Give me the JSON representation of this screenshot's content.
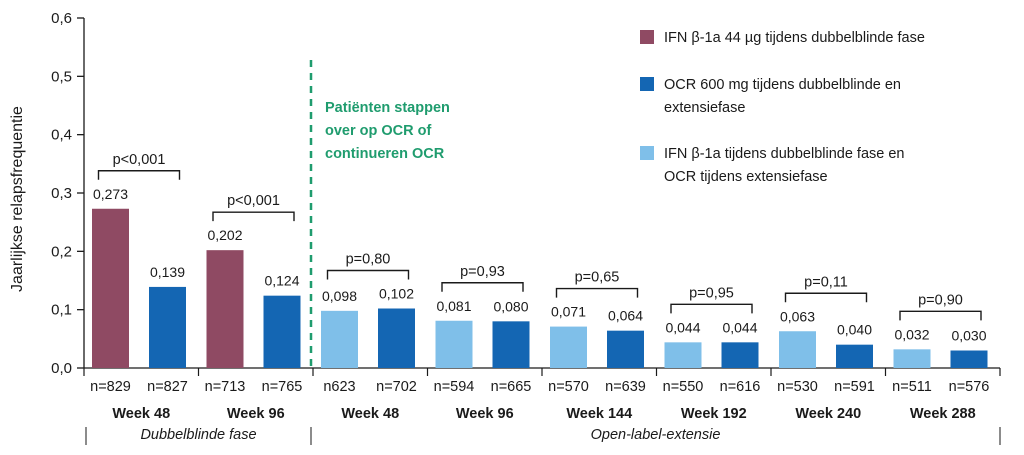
{
  "chart_data": {
    "type": "bar",
    "ylabel": "Jaarlijkse relapsfrequentie",
    "ylim": [
      0,
      0.6
    ],
    "yticks": [
      "0,0",
      "0,1",
      "0,2",
      "0,3",
      "0,4",
      "0,5",
      "0,6"
    ],
    "grid": false,
    "legend_position": "top-right",
    "colors": {
      "ifn": "#8f4a63",
      "ocr": "#1466b3",
      "ifn_ocr": "#7fbfe9",
      "divider": "#1f9c6e"
    },
    "legend": [
      {
        "series": "ifn",
        "lines": [
          "IFN β-1a 44 µg tijdens dubbelblinde fase"
        ]
      },
      {
        "series": "ocr",
        "lines": [
          "OCR 600 mg tijdens dubbelblinde en",
          "extensiefase"
        ]
      },
      {
        "series": "ifn_ocr",
        "lines": [
          "IFN β-1a tijdens dubbelblinde fase en",
          "OCR tijdens extensiefase"
        ]
      }
    ],
    "switch_note": [
      "Patiënten stappen",
      "over op OCR of",
      "continueren OCR"
    ],
    "groups": [
      {
        "week": "Week 48",
        "p": "p<0,001",
        "bars": [
          {
            "series": "ifn",
            "value": 0.273,
            "label": "0,273",
            "n": "n=829"
          },
          {
            "series": "ocr",
            "value": 0.139,
            "label": "0,139",
            "n": "n=827"
          }
        ]
      },
      {
        "week": "Week 96",
        "p": "p<0,001",
        "bars": [
          {
            "series": "ifn",
            "value": 0.202,
            "label": "0,202",
            "n": "n=713"
          },
          {
            "series": "ocr",
            "value": 0.124,
            "label": "0,124",
            "n": "n=765"
          }
        ]
      },
      {
        "week": "Week 48",
        "p": "p=0,80",
        "bars": [
          {
            "series": "ifn_ocr",
            "value": 0.098,
            "label": "0,098",
            "n": "n623"
          },
          {
            "series": "ocr",
            "value": 0.102,
            "label": "0,102",
            "n": "n=702"
          }
        ]
      },
      {
        "week": "Week 96",
        "p": "p=0,93",
        "bars": [
          {
            "series": "ifn_ocr",
            "value": 0.081,
            "label": "0,081",
            "n": "n=594"
          },
          {
            "series": "ocr",
            "value": 0.08,
            "label": "0,080",
            "n": "n=665"
          }
        ]
      },
      {
        "week": "Week 144",
        "p": "p=0,65",
        "bars": [
          {
            "series": "ifn_ocr",
            "value": 0.071,
            "label": "0,071",
            "n": "n=570"
          },
          {
            "series": "ocr",
            "value": 0.064,
            "label": "0,064",
            "n": "n=639"
          }
        ]
      },
      {
        "week": "Week 192",
        "p": "p=0,95",
        "bars": [
          {
            "series": "ifn_ocr",
            "value": 0.044,
            "label": "0,044",
            "n": "n=550"
          },
          {
            "series": "ocr",
            "value": 0.044,
            "label": "0,044",
            "n": "n=616"
          }
        ]
      },
      {
        "week": "Week 240",
        "p": "p=0,11",
        "bars": [
          {
            "series": "ifn_ocr",
            "value": 0.063,
            "label": "0,063",
            "n": "n=530"
          },
          {
            "series": "ocr",
            "value": 0.04,
            "label": "0,040",
            "n": "n=591"
          }
        ]
      },
      {
        "week": "Week 288",
        "p": "p=0,90",
        "bars": [
          {
            "series": "ifn_ocr",
            "value": 0.032,
            "label": "0,032",
            "n": "n=511"
          },
          {
            "series": "ocr",
            "value": 0.03,
            "label": "0,030",
            "n": "n=576"
          }
        ]
      }
    ],
    "phases": [
      {
        "label": "Dubbelblinde fase",
        "first_group": 0,
        "last_group": 1
      },
      {
        "label": "Open-label-extensie",
        "first_group": 2,
        "last_group": 7
      }
    ]
  }
}
